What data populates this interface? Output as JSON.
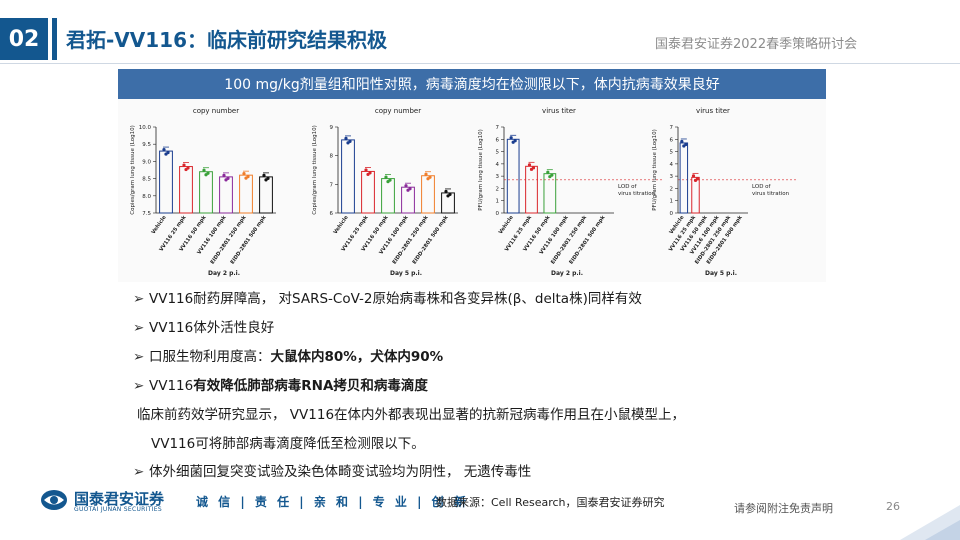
{
  "header": {
    "section_number": "02",
    "title": "君拓-VV116：临床前研究结果积极",
    "conference": "国泰君安证券2022春季策略研讨会"
  },
  "banner": {
    "text": "100 mg/kg剂量组和阳性对照，病毒滴度均在检测限以下，体内抗病毒效果良好"
  },
  "chart_data": [
    {
      "type": "scatter",
      "title": "copy number",
      "ylabel": "Copies/gram lung tissue (Log10)",
      "xlabel": "Day 2 p.i.",
      "ylim": [
        7.5,
        10.0
      ],
      "yticks": [
        "7.5",
        "8.0",
        "8.5",
        "9.0",
        "9.5",
        "10.0"
      ],
      "categories": [
        "Vehicle",
        "VV116 25 mpk",
        "VV116 50 mpk",
        "VV116 100 mpk",
        "EIDD-2801 250 mpk",
        "EIDD-2801 500 mpk"
      ],
      "values": [
        9.3,
        8.85,
        8.7,
        8.55,
        8.6,
        8.55
      ],
      "colors": [
        "#1a3d8f",
        "#d9252b",
        "#3aa13a",
        "#8a2a9a",
        "#f07d2a",
        "#111111"
      ]
    },
    {
      "type": "scatter",
      "title": "copy number",
      "ylabel": "Copies/gram lung tissue (Log10)",
      "xlabel": "Day 5 p.i.",
      "ylim": [
        6,
        9
      ],
      "yticks": [
        "6",
        "7",
        "8",
        "9"
      ],
      "categories": [
        "Vehicle",
        "VV116 25 mpk",
        "VV116 50 mpk",
        "VV116 100 mpk",
        "EIDD-2801 250 mpk",
        "EIDD-2801 500 mpk"
      ],
      "values": [
        8.55,
        7.45,
        7.2,
        6.9,
        7.3,
        6.7
      ],
      "colors": [
        "#1a3d8f",
        "#d9252b",
        "#3aa13a",
        "#8a2a9a",
        "#f07d2a",
        "#111111"
      ]
    },
    {
      "type": "scatter",
      "title": "virus titer",
      "ylabel": "PFU/gram lung tissue (Log10)",
      "xlabel": "Day 2 p.i.",
      "ylim": [
        0,
        7
      ],
      "yticks": [
        "0",
        "1",
        "2",
        "3",
        "4",
        "5",
        "6",
        "7"
      ],
      "categories": [
        "Vehicle",
        "VV116 25 mpk",
        "VV116 50 mpk",
        "VV116 100 mpk",
        "EIDD-2801 250 mpk",
        "EIDD-2801 500 mpk"
      ],
      "values": [
        6.0,
        3.8,
        3.2,
        null,
        null,
        null
      ],
      "colors": [
        "#1a3d8f",
        "#d9252b",
        "#3aa13a",
        "#8a2a9a",
        "#f07d2a",
        "#111111"
      ],
      "lod": 2.7,
      "lod_label": [
        "LOD of",
        "virus titration"
      ]
    },
    {
      "type": "scatter",
      "title": "virus titer",
      "ylabel": "PFU/gram lung tissue (Log10)",
      "xlabel": "Day 5 p.i.",
      "ylim": [
        0,
        7
      ],
      "yticks": [
        "0",
        "1",
        "2",
        "3",
        "4",
        "5",
        "6",
        "7"
      ],
      "categories": [
        "Vehicle",
        "VV116 25 mpk",
        "VV116 50 mpk",
        "VV116 100 mpk",
        "EIDD-2801 250 mpk",
        "EIDD-2801 500 mpk"
      ],
      "values": [
        5.7,
        2.9,
        null,
        null,
        null,
        null
      ],
      "colors": [
        "#1a3d8f",
        "#d9252b",
        "#3aa13a",
        "#8a2a9a",
        "#f07d2a",
        "#111111"
      ],
      "lod": 2.7,
      "lod_label": [
        "LOD of",
        "virus titration"
      ]
    }
  ],
  "bullets": {
    "b1_a": "VV116耐药屏障高，  对SARS-CoV-2原始病毒株和各变异株(β、delta株)同样有效",
    "b2": "VV116体外活性良好",
    "b3_a": "口服生物利用度高：",
    "b3_b": "大鼠体内80%，犬体内90%",
    "b4_a": "VV116",
    "b4_b": "有效降低肺部病毒RNA拷贝和病毒滴度",
    "p1": "临床前药效学研究显示，  VV116在体内外都表现出显著的抗新冠病毒作用且在小鼠模型上，",
    "p2": "VV116可将肺部病毒滴度降低至检测限以下。",
    "b5": "体外细菌回复突变试验及染色体畸变试验均为阴性，  无遗传毒性"
  },
  "footer": {
    "logo_cn": "国泰君安证券",
    "logo_en": "GUOTAI JUNAN SECURITIES",
    "slogan": "诚 信 | 责 任 | 亲 和 | 专 业 | 创 新",
    "source": "数据来源：Cell Research，国泰君安证券研究",
    "disclaimer": "请参阅附注免责声明",
    "page": "26"
  },
  "colors": {
    "brand": "#13578f",
    "banner": "#3d6ea8"
  }
}
